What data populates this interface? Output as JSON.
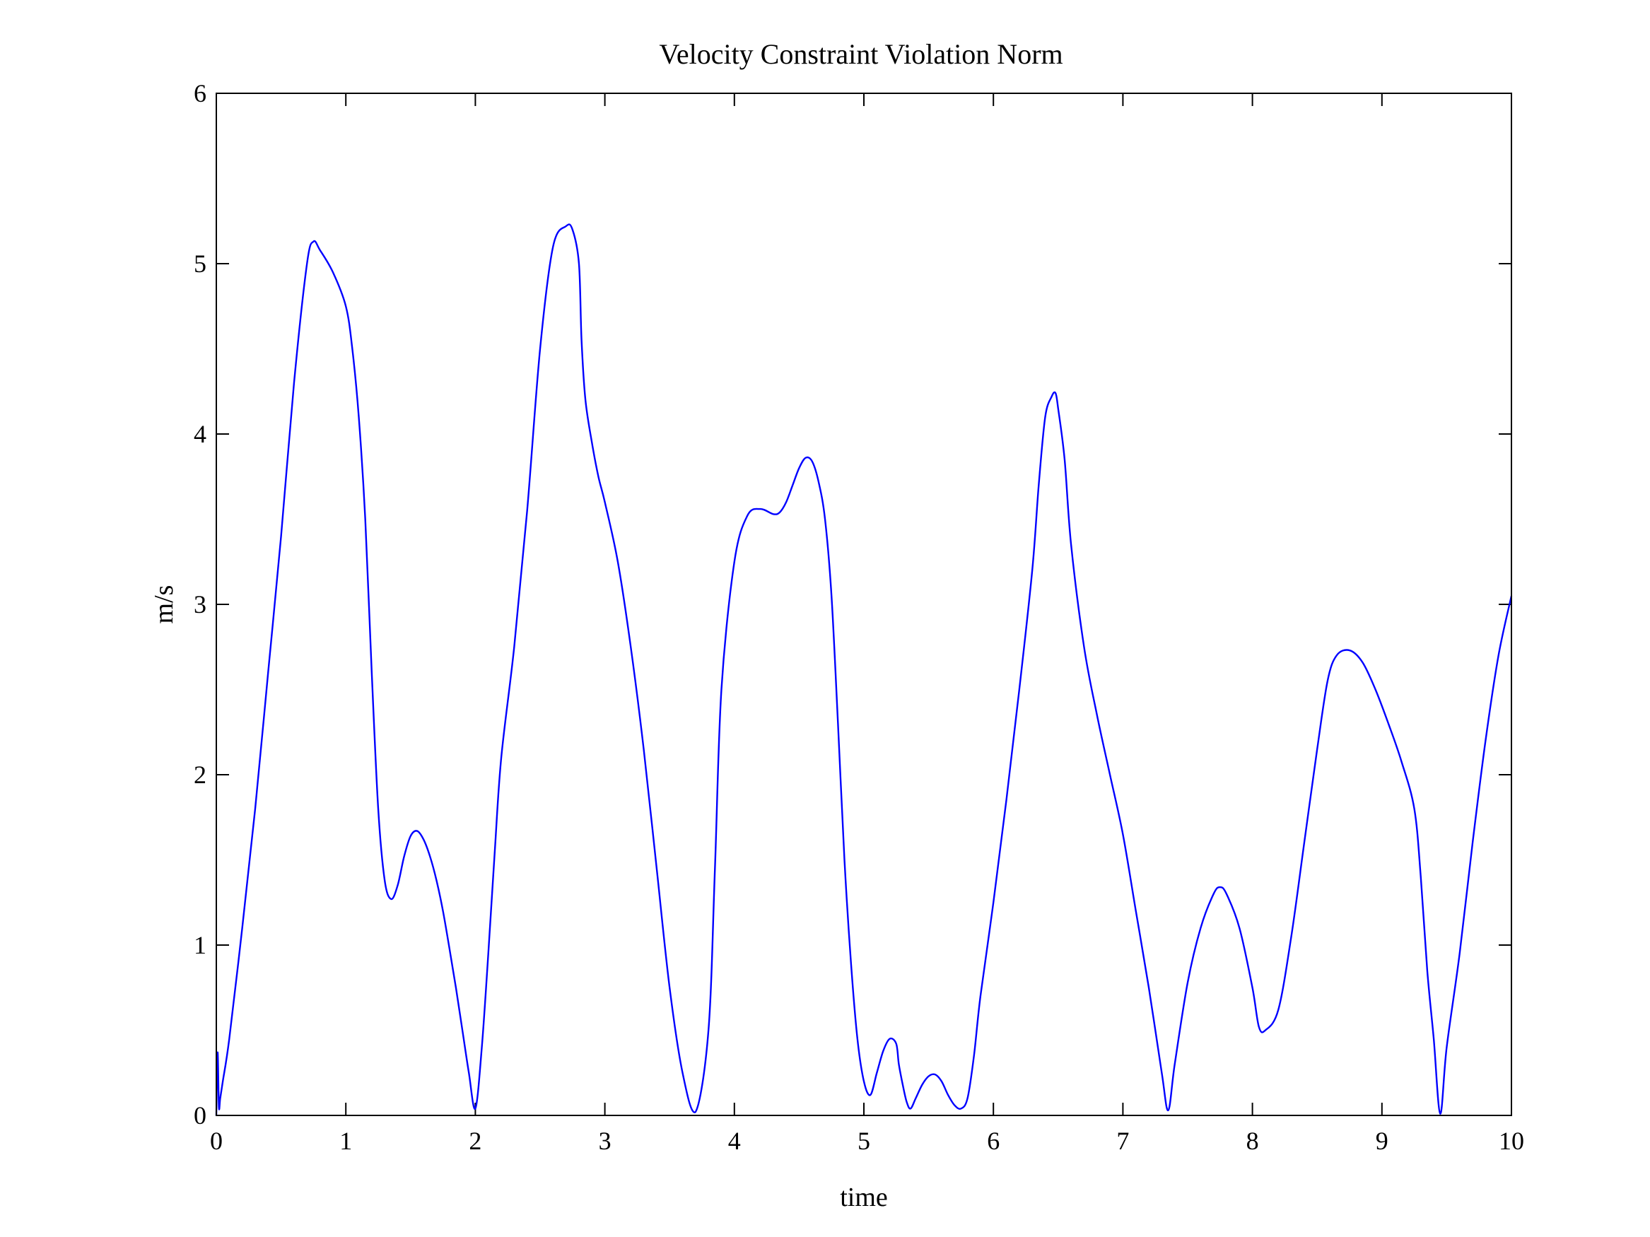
{
  "chart_data": {
    "type": "line",
    "title": "Velocity Constraint Violation Norm",
    "xlabel": "time",
    "ylabel": "m/s",
    "xlim": [
      0,
      10
    ],
    "ylim": [
      0,
      6
    ],
    "xticks": [
      "0",
      "1",
      "2",
      "3",
      "4",
      "5",
      "6",
      "7",
      "8",
      "9",
      "10"
    ],
    "yticks": [
      "0",
      "1",
      "2",
      "3",
      "4",
      "5",
      "6"
    ],
    "grid": false,
    "legend": "none",
    "line_color": "#0000ff",
    "series": [
      {
        "x": [
          0,
          0.01,
          0.02,
          0.03,
          0.05,
          0.1,
          0.2,
          0.3,
          0.4,
          0.5,
          0.6,
          0.7,
          0.75,
          0.8,
          0.9,
          1.0,
          1.05,
          1.1,
          1.15,
          1.2,
          1.25,
          1.3,
          1.35,
          1.4,
          1.45,
          1.5,
          1.55,
          1.6,
          1.65,
          1.7,
          1.75,
          1.8,
          1.85,
          1.9,
          1.95,
          2.0,
          2.05,
          2.1,
          2.15,
          2.2,
          2.3,
          2.4,
          2.5,
          2.6,
          2.7,
          2.75,
          2.8,
          2.82,
          2.85,
          2.9,
          2.95,
          3.0,
          3.1,
          3.2,
          3.3,
          3.4,
          3.5,
          3.6,
          3.7,
          3.8,
          3.85,
          3.9,
          4.0,
          4.1,
          4.2,
          4.3,
          4.35,
          4.4,
          4.45,
          4.5,
          4.55,
          4.6,
          4.65,
          4.7,
          4.75,
          4.8,
          4.85,
          4.9,
          4.95,
          5.0,
          5.05,
          5.1,
          5.15,
          5.2,
          5.25,
          5.27,
          5.3,
          5.33,
          5.36,
          5.4,
          5.45,
          5.5,
          5.55,
          5.6,
          5.65,
          5.7,
          5.75,
          5.8,
          5.85,
          5.9,
          6.0,
          6.1,
          6.2,
          6.3,
          6.35,
          6.4,
          6.45,
          6.48,
          6.5,
          6.55,
          6.6,
          6.7,
          6.8,
          6.9,
          7.0,
          7.1,
          7.2,
          7.3,
          7.35,
          7.4,
          7.5,
          7.6,
          7.7,
          7.75,
          7.8,
          7.9,
          8.0,
          8.05,
          8.1,
          8.2,
          8.3,
          8.4,
          8.5,
          8.58,
          8.65,
          8.75,
          8.85,
          8.95,
          9.05,
          9.15,
          9.25,
          9.3,
          9.35,
          9.4,
          9.45,
          9.5,
          9.6,
          9.7,
          9.8,
          9.9,
          10.0
        ],
        "y": [
          0.0,
          0.37,
          0.05,
          0.1,
          0.2,
          0.45,
          1.1,
          1.8,
          2.6,
          3.4,
          4.3,
          5.0,
          5.13,
          5.08,
          4.95,
          4.75,
          4.5,
          4.1,
          3.5,
          2.6,
          1.8,
          1.38,
          1.27,
          1.35,
          1.52,
          1.64,
          1.67,
          1.62,
          1.52,
          1.38,
          1.2,
          0.98,
          0.75,
          0.5,
          0.25,
          0.04,
          0.4,
          0.95,
          1.55,
          2.1,
          2.75,
          3.55,
          4.5,
          5.1,
          5.22,
          5.2,
          5.0,
          4.55,
          4.2,
          3.95,
          3.75,
          3.6,
          3.25,
          2.75,
          2.15,
          1.45,
          0.75,
          0.25,
          0.02,
          0.5,
          1.45,
          2.5,
          3.25,
          3.52,
          3.56,
          3.53,
          3.54,
          3.6,
          3.7,
          3.8,
          3.86,
          3.84,
          3.72,
          3.5,
          3.05,
          2.3,
          1.5,
          0.9,
          0.45,
          0.2,
          0.12,
          0.25,
          0.38,
          0.45,
          0.42,
          0.3,
          0.18,
          0.08,
          0.04,
          0.1,
          0.18,
          0.23,
          0.24,
          0.2,
          0.12,
          0.06,
          0.04,
          0.1,
          0.35,
          0.7,
          1.25,
          1.85,
          2.5,
          3.2,
          3.7,
          4.1,
          4.22,
          4.24,
          4.15,
          3.85,
          3.35,
          2.75,
          2.35,
          2.0,
          1.65,
          1.2,
          0.75,
          0.25,
          0.03,
          0.3,
          0.78,
          1.1,
          1.3,
          1.34,
          1.3,
          1.1,
          0.75,
          0.52,
          0.5,
          0.62,
          1.05,
          1.6,
          2.15,
          2.55,
          2.7,
          2.73,
          2.66,
          2.5,
          2.3,
          2.08,
          1.8,
          1.4,
          0.85,
          0.45,
          0.01,
          0.4,
          0.95,
          1.6,
          2.2,
          2.7,
          3.05
        ]
      }
    ]
  }
}
